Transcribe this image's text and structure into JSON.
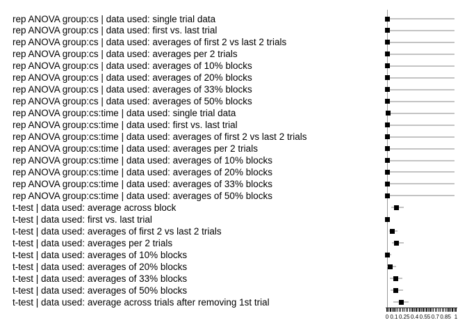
{
  "figure": {
    "background": "#ffffff",
    "marker_color": "#000000",
    "whisker_color": "#c3c3c3",
    "y_axis_color": "#9a9a9a",
    "tick_color": "#111111"
  },
  "chart_data": {
    "type": "scatter",
    "subtype": "forest-plot-dot-with-horizontal-error-bars",
    "title": "",
    "xlabel": "",
    "ylabel": "",
    "xlim": [
      0,
      1
    ],
    "grid": false,
    "legend": false,
    "x_axis": {
      "minor_tick_step": 0.025,
      "labeled_tick_values": [
        0,
        0.1,
        0.25,
        0.4,
        0.55,
        0.7,
        0.85,
        1
      ],
      "labeled_tick_texts": [
        "0",
        "0.1",
        "0.25",
        "0.4",
        "0.55",
        "0.7",
        "0.85",
        "1"
      ]
    },
    "rows": [
      {
        "label": "rep ANOVA group:cs | data used: single trial data",
        "value": 0.01,
        "lo": 0.0,
        "hi": 0.98
      },
      {
        "label": "rep ANOVA group:cs | data used: first vs. last trial",
        "value": 0.0,
        "lo": 0.0,
        "hi": 0.98
      },
      {
        "label": "rep ANOVA group:cs | data used: averages of first 2 vs last 2 trials",
        "value": 0.005,
        "lo": 0.0,
        "hi": 0.98
      },
      {
        "label": "rep ANOVA group:cs | data used: averages per 2 trials",
        "value": 0.01,
        "lo": 0.0,
        "hi": 0.98
      },
      {
        "label": "rep ANOVA group:cs | data used: averages of 10% blocks",
        "value": 0.0,
        "lo": 0.0,
        "hi": 0.98
      },
      {
        "label": "rep ANOVA group:cs | data used: averages of 20% blocks",
        "value": 0.0,
        "lo": 0.0,
        "hi": 0.98
      },
      {
        "label": "rep ANOVA group:cs | data used: averages of 33% blocks",
        "value": 0.005,
        "lo": 0.0,
        "hi": 0.98
      },
      {
        "label": "rep ANOVA group:cs | data used: averages of 50% blocks",
        "value": 0.005,
        "lo": 0.0,
        "hi": 0.98
      },
      {
        "label": "rep ANOVA group:cs:time | data used: single trial data",
        "value": 0.02,
        "lo": 0.0,
        "hi": 0.98
      },
      {
        "label": "rep ANOVA group:cs:time | data used: first vs. last trial",
        "value": 0.0,
        "lo": 0.0,
        "hi": 0.98
      },
      {
        "label": "rep ANOVA group:cs:time | data used: averages of first 2 vs last 2 trials",
        "value": 0.005,
        "lo": 0.0,
        "hi": 0.98
      },
      {
        "label": "rep ANOVA group:cs:time | data used: averages per 2 trials",
        "value": 0.01,
        "lo": 0.0,
        "hi": 0.98
      },
      {
        "label": "rep ANOVA group:cs:time | data used: averages of 10% blocks",
        "value": 0.0,
        "lo": 0.0,
        "hi": 0.98
      },
      {
        "label": "rep ANOVA group:cs:time | data used: averages of 20% blocks",
        "value": 0.005,
        "lo": 0.0,
        "hi": 0.98
      },
      {
        "label": "rep ANOVA group:cs:time | data used: averages of 33% blocks",
        "value": 0.0,
        "lo": 0.0,
        "hi": 0.98
      },
      {
        "label": "rep ANOVA group:cs:time | data used: averages of 50% blocks",
        "value": 0.0,
        "lo": 0.0,
        "hi": 0.98
      },
      {
        "label": "t-test | data used: average across block",
        "value": 0.14,
        "lo": 0.06,
        "hi": 0.245
      },
      {
        "label": "t-test | data used: first vs. last trial",
        "value": 0.0,
        "lo": 0.0,
        "hi": 0.04
      },
      {
        "label": "t-test | data used: averages of first 2 vs last 2 trials",
        "value": 0.08,
        "lo": 0.03,
        "hi": 0.15
      },
      {
        "label": "t-test | data used: averages per 2 trials",
        "value": 0.135,
        "lo": 0.07,
        "hi": 0.245
      },
      {
        "label": "t-test | data used: averages of 10% blocks",
        "value": 0.005,
        "lo": 0.0,
        "hi": 0.06
      },
      {
        "label": "t-test | data used: averages of 20% blocks",
        "value": 0.05,
        "lo": 0.005,
        "hi": 0.13
      },
      {
        "label": "t-test | data used: averages of 33% blocks",
        "value": 0.13,
        "lo": 0.04,
        "hi": 0.22
      },
      {
        "label": "t-test | data used: averages of 50% blocks",
        "value": 0.13,
        "lo": 0.05,
        "hi": 0.235
      },
      {
        "label": "t-test | data used: average across trials after removing 1st trial",
        "value": 0.21,
        "lo": 0.09,
        "hi": 0.315
      }
    ]
  }
}
